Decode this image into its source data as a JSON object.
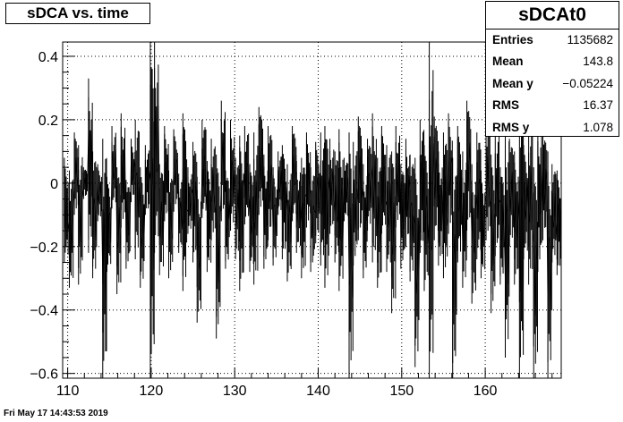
{
  "chart_data": {
    "type": "line",
    "title": "sDCA vs. time",
    "xlabel": "",
    "ylabel": "",
    "xlim": [
      109.4,
      169.1
    ],
    "ylim": [
      -0.615,
      0.445
    ],
    "x_ticks": [
      110,
      120,
      130,
      140,
      150,
      160
    ],
    "x_tick_labels": [
      "110",
      "120",
      "130",
      "140",
      "150",
      "160"
    ],
    "y_ticks": [
      -0.6,
      -0.4,
      -0.2,
      0,
      0.2,
      0.4
    ],
    "y_tick_labels": [
      "−0.6",
      "−0.4",
      "−0.2",
      "0",
      "0.2",
      "0.4"
    ],
    "grid": true,
    "legend": "none",
    "series_color": "#000000",
    "range_bins": [
      [
        109.6,
        -0.25,
        0.08
      ],
      [
        110.2,
        -0.33,
        0.04
      ],
      [
        110.8,
        -0.1,
        0.16
      ],
      [
        111.3,
        -0.32,
        0.12
      ],
      [
        111.9,
        -0.05,
        0.05
      ],
      [
        112.5,
        -0.22,
        0.33
      ],
      [
        113.0,
        -0.3,
        0.1
      ],
      [
        113.6,
        -0.12,
        0.06
      ],
      [
        114.2,
        -0.62,
        0.14
      ],
      [
        114.7,
        -0.28,
        0.02
      ],
      [
        115.3,
        -0.08,
        0.18
      ],
      [
        115.9,
        -0.35,
        0.05
      ],
      [
        116.4,
        -0.14,
        0.22
      ],
      [
        117.0,
        -0.27,
        0.01
      ],
      [
        117.6,
        -0.06,
        0.14
      ],
      [
        118.1,
        -0.24,
        0.2
      ],
      [
        118.7,
        -0.33,
        0.05
      ],
      [
        119.3,
        -0.1,
        0.12
      ],
      [
        119.9,
        -0.62,
        0.45
      ],
      [
        120.4,
        -0.22,
        0.45
      ],
      [
        121.0,
        -0.29,
        0.06
      ],
      [
        121.6,
        -0.12,
        0.18
      ],
      [
        122.1,
        -0.3,
        0.04
      ],
      [
        122.7,
        -0.09,
        0.17
      ],
      [
        123.3,
        -0.22,
        0.03
      ],
      [
        123.8,
        -0.34,
        0.22
      ],
      [
        124.4,
        -0.16,
        0.05
      ],
      [
        125.0,
        -0.25,
        0.13
      ],
      [
        125.5,
        -0.44,
        0.02
      ],
      [
        126.1,
        -0.11,
        0.2
      ],
      [
        126.7,
        -0.28,
        0.07
      ],
      [
        127.2,
        -0.18,
        0.14
      ],
      [
        127.8,
        -0.49,
        0.09
      ],
      [
        128.4,
        -0.12,
        0.26
      ],
      [
        128.9,
        -0.27,
        0.04
      ],
      [
        129.5,
        -0.15,
        0.2
      ],
      [
        130.1,
        -0.24,
        0.08
      ],
      [
        130.6,
        -0.34,
        0.15
      ],
      [
        131.2,
        -0.13,
        0.18
      ],
      [
        131.8,
        -0.28,
        0.06
      ],
      [
        132.3,
        -0.32,
        0.16
      ],
      [
        132.9,
        -0.1,
        0.24
      ],
      [
        133.5,
        -0.27,
        0.09
      ],
      [
        134.0,
        -0.18,
        0.18
      ],
      [
        134.6,
        -0.26,
        0.05
      ],
      [
        135.2,
        -0.1,
        0.1
      ],
      [
        135.7,
        -0.24,
        0.12
      ],
      [
        136.3,
        -0.31,
        0.06
      ],
      [
        136.9,
        -0.12,
        0.18
      ],
      [
        137.4,
        -0.22,
        0.07
      ],
      [
        138.0,
        -0.3,
        0.08
      ],
      [
        138.6,
        -0.14,
        0.16
      ],
      [
        139.1,
        -0.28,
        0.05
      ],
      [
        139.7,
        -0.19,
        0.13
      ],
      [
        140.3,
        -0.26,
        0.16
      ],
      [
        140.8,
        -0.33,
        0.18
      ],
      [
        141.4,
        -0.16,
        0.14
      ],
      [
        142.0,
        -0.25,
        0.1
      ],
      [
        142.5,
        -0.34,
        0.17
      ],
      [
        143.1,
        -0.12,
        0.08
      ],
      [
        143.7,
        -0.62,
        0.16
      ],
      [
        144.2,
        -0.26,
        0.13
      ],
      [
        144.8,
        -0.18,
        0.21
      ],
      [
        145.4,
        -0.3,
        0.06
      ],
      [
        145.9,
        -0.15,
        0.14
      ],
      [
        146.5,
        -0.25,
        0.22
      ],
      [
        147.1,
        -0.33,
        0.08
      ],
      [
        147.6,
        -0.16,
        0.18
      ],
      [
        148.2,
        -0.28,
        0.12
      ],
      [
        148.8,
        -0.41,
        0.1
      ],
      [
        149.3,
        -0.14,
        0.18
      ],
      [
        149.9,
        -0.27,
        0.06
      ],
      [
        150.5,
        -0.2,
        0.14
      ],
      [
        151.0,
        -0.31,
        0.09
      ],
      [
        151.6,
        -0.58,
        0.08
      ],
      [
        152.2,
        -0.22,
        0.2
      ],
      [
        152.7,
        -0.34,
        0.12
      ],
      [
        153.3,
        -0.62,
        0.45
      ],
      [
        153.9,
        -0.18,
        0.21
      ],
      [
        154.4,
        -0.26,
        0.1
      ],
      [
        155.0,
        -0.3,
        0.16
      ],
      [
        155.6,
        -0.16,
        0.22
      ],
      [
        156.1,
        -0.62,
        0.08
      ],
      [
        156.7,
        -0.25,
        0.18
      ],
      [
        157.3,
        -0.33,
        0.1
      ],
      [
        157.8,
        -0.15,
        0.26
      ],
      [
        158.4,
        -0.38,
        0.06
      ],
      [
        159.0,
        -0.24,
        0.16
      ],
      [
        159.5,
        -0.3,
        0.04
      ],
      [
        160.1,
        -0.18,
        0.2
      ],
      [
        160.7,
        -0.41,
        0.09
      ],
      [
        161.2,
        -0.23,
        0.18
      ],
      [
        161.8,
        -0.32,
        0.05
      ],
      [
        162.4,
        -0.55,
        0.22
      ],
      [
        162.9,
        -0.2,
        0.14
      ],
      [
        163.5,
        -0.32,
        0.1
      ],
      [
        164.1,
        -0.62,
        0.3
      ],
      [
        164.6,
        -0.24,
        0.12
      ],
      [
        165.2,
        -0.32,
        0.22
      ],
      [
        165.8,
        -0.62,
        0.05
      ],
      [
        166.3,
        -0.28,
        0.2
      ],
      [
        166.9,
        -0.18,
        0.16
      ],
      [
        167.5,
        -0.62,
        0.1
      ],
      [
        168.0,
        -0.25,
        0.06
      ],
      [
        168.6,
        -0.29,
        0.04
      ]
    ]
  },
  "stats": {
    "title": "sDCAt0",
    "rows": [
      {
        "label": "Entries",
        "value": "1135682"
      },
      {
        "label": "Mean",
        "value": "143.8"
      },
      {
        "label": "Mean y",
        "value": "−0.05224"
      },
      {
        "label": "RMS",
        "value": "16.37"
      },
      {
        "label": "RMS y",
        "value": "1.078"
      }
    ]
  },
  "footer": {
    "timestamp": "Fri May 17 14:43:53 2019"
  }
}
